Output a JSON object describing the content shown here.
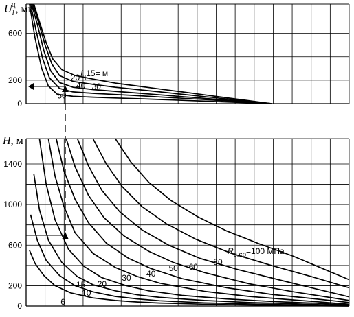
{
  "chart_data": [
    {
      "type": "line",
      "ylabel": {
        "main": "U",
        "sub": "l",
        "sup": "ц",
        "unit": ", мм"
      },
      "yticks": [
        "600",
        "200",
        "0"
      ],
      "ylim": [
        0,
        850
      ],
      "xlim": [
        0,
        14.5
      ],
      "grid": true,
      "series_label_prefix": {
        "main": "l",
        "sub": "ц",
        "rest": "=15 м"
      },
      "series": [
        {
          "name": "15",
          "points": [
            [
              0.35,
              850
            ],
            [
              0.6,
              700
            ],
            [
              0.9,
              520
            ],
            [
              1.2,
              380
            ],
            [
              1.6,
              290
            ],
            [
              2.2,
              240
            ],
            [
              3,
              210
            ],
            [
              4,
              175
            ],
            [
              5,
              150
            ],
            [
              6,
              125
            ],
            [
              7,
              100
            ],
            [
              8,
              75
            ],
            [
              9,
              50
            ],
            [
              10,
              25
            ],
            [
              11,
              0
            ]
          ]
        },
        {
          "name": "20",
          "points": [
            [
              0.3,
              850
            ],
            [
              0.55,
              700
            ],
            [
              0.85,
              500
            ],
            [
              1.15,
              340
            ],
            [
              1.5,
              240
            ],
            [
              2.1,
              190
            ],
            [
              3,
              165
            ],
            [
              4,
              140
            ],
            [
              5,
              120
            ],
            [
              6,
              100
            ],
            [
              7,
              80
            ],
            [
              8,
              60
            ],
            [
              9,
              40
            ],
            [
              10,
              20
            ],
            [
              11,
              0
            ]
          ]
        },
        {
          "name": "30",
          "points": [
            [
              0.25,
              850
            ],
            [
              0.5,
              680
            ],
            [
              0.8,
              450
            ],
            [
              1.1,
              280
            ],
            [
              1.5,
              180
            ],
            [
              2.1,
              140
            ],
            [
              3,
              120
            ],
            [
              4,
              105
            ],
            [
              5,
              90
            ],
            [
              6,
              75
            ],
            [
              7,
              60
            ],
            [
              8,
              45
            ],
            [
              9,
              30
            ],
            [
              10,
              15
            ],
            [
              11,
              0
            ]
          ]
        },
        {
          "name": "40",
          "points": [
            [
              0.2,
              850
            ],
            [
              0.45,
              620
            ],
            [
              0.75,
              380
            ],
            [
              1.05,
              220
            ],
            [
              1.5,
              130
            ],
            [
              2.1,
              100
            ],
            [
              3,
              88
            ],
            [
              4,
              78
            ],
            [
              5,
              68
            ],
            [
              6,
              57
            ],
            [
              7,
              46
            ],
            [
              8,
              35
            ],
            [
              9,
              23
            ],
            [
              10,
              11
            ],
            [
              11,
              0
            ]
          ]
        },
        {
          "name": "50",
          "points": [
            [
              0.15,
              850
            ],
            [
              0.4,
              560
            ],
            [
              0.7,
              300
            ],
            [
              1,
              150
            ],
            [
              1.4,
              80
            ],
            [
              2.1,
              62
            ],
            [
              3,
              55
            ],
            [
              4,
              48
            ],
            [
              5,
              42
            ],
            [
              6,
              35
            ],
            [
              7,
              28
            ],
            [
              8,
              21
            ],
            [
              9,
              14
            ],
            [
              10,
              7
            ],
            [
              11,
              0
            ]
          ]
        }
      ]
    },
    {
      "type": "line",
      "ylabel": {
        "main": "H",
        "unit": ", м"
      },
      "yticks": [
        "1400",
        "1000",
        "600",
        "200",
        "0"
      ],
      "ylim": [
        0,
        1650
      ],
      "xlim": [
        0,
        14.5
      ],
      "grid": true,
      "series_label_prefix": {
        "main": "R",
        "sub": "с.ср",
        "rest": "=100 МПа"
      },
      "series": [
        {
          "name": "6",
          "points": [
            [
              0.15,
              550
            ],
            [
              0.4,
              420
            ],
            [
              0.8,
              300
            ],
            [
              1.3,
              200
            ],
            [
              2,
              130
            ],
            [
              3,
              80
            ],
            [
              4,
              55
            ],
            [
              5,
              40
            ],
            [
              6,
              30
            ],
            [
              8,
              18
            ],
            [
              10,
              10
            ],
            [
              12,
              5
            ],
            [
              14.5,
              0
            ]
          ]
        },
        {
          "name": "10",
          "points": [
            [
              0.2,
              900
            ],
            [
              0.5,
              650
            ],
            [
              0.9,
              450
            ],
            [
              1.5,
              300
            ],
            [
              2.2,
              200
            ],
            [
              3,
              140
            ],
            [
              4,
              95
            ],
            [
              5,
              70
            ],
            [
              6,
              52
            ],
            [
              8,
              32
            ],
            [
              10,
              20
            ],
            [
              12,
              12
            ],
            [
              14.5,
              2
            ]
          ]
        },
        {
          "name": "15",
          "points": [
            [
              0.35,
              1300
            ],
            [
              0.6,
              950
            ],
            [
              1,
              650
            ],
            [
              1.6,
              430
            ],
            [
              2.3,
              290
            ],
            [
              3,
              210
            ],
            [
              4,
              150
            ],
            [
              5,
              110
            ],
            [
              6,
              85
            ],
            [
              8,
              55
            ],
            [
              10,
              35
            ],
            [
              12,
              22
            ],
            [
              14.5,
              5
            ]
          ]
        },
        {
          "name": "20",
          "points": [
            [
              0.6,
              1650
            ],
            [
              0.9,
              1200
            ],
            [
              1.3,
              850
            ],
            [
              1.9,
              560
            ],
            [
              2.6,
              390
            ],
            [
              3.4,
              280
            ],
            [
              4.5,
              200
            ],
            [
              5.5,
              150
            ],
            [
              7,
              105
            ],
            [
              9,
              70
            ],
            [
              11,
              45
            ],
            [
              13,
              28
            ],
            [
              14.5,
              10
            ]
          ]
        },
        {
          "name": "30",
          "points": [
            [
              1,
              1650
            ],
            [
              1.3,
              1280
            ],
            [
              1.7,
              980
            ],
            [
              2.2,
              720
            ],
            [
              3,
              520
            ],
            [
              4,
              380
            ],
            [
              5,
              290
            ],
            [
              6,
              225
            ],
            [
              8,
              145
            ],
            [
              10,
              95
            ],
            [
              12,
              60
            ],
            [
              14.5,
              18
            ]
          ]
        },
        {
          "name": "40",
          "points": [
            [
              1.35,
              1650
            ],
            [
              1.7,
              1330
            ],
            [
              2.2,
              1050
            ],
            [
              2.8,
              820
            ],
            [
              3.6,
              620
            ],
            [
              4.6,
              470
            ],
            [
              5.6,
              370
            ],
            [
              7,
              270
            ],
            [
              9,
              180
            ],
            [
              11,
              115
            ],
            [
              13,
              70
            ],
            [
              14.5,
              35
            ]
          ]
        },
        {
          "name": "50",
          "points": [
            [
              1.8,
              1650
            ],
            [
              2.2,
              1370
            ],
            [
              2.8,
              1090
            ],
            [
              3.5,
              870
            ],
            [
              4.4,
              690
            ],
            [
              5.5,
              540
            ],
            [
              6.6,
              430
            ],
            [
              8,
              330
            ],
            [
              10,
              220
            ],
            [
              12,
              140
            ],
            [
              14.5,
              55
            ]
          ]
        },
        {
          "name": "60",
          "points": [
            [
              2.3,
              1650
            ],
            [
              2.8,
              1380
            ],
            [
              3.4,
              1140
            ],
            [
              4.2,
              930
            ],
            [
              5.2,
              750
            ],
            [
              6.4,
              600
            ],
            [
              7.8,
              470
            ],
            [
              9.5,
              360
            ],
            [
              11.5,
              250
            ],
            [
              13,
              170
            ],
            [
              14.5,
              90
            ]
          ]
        },
        {
          "name": "80",
          "points": [
            [
              3,
              1650
            ],
            [
              3.6,
              1400
            ],
            [
              4.3,
              1180
            ],
            [
              5.2,
              980
            ],
            [
              6.3,
              810
            ],
            [
              7.6,
              660
            ],
            [
              9.2,
              520
            ],
            [
              11,
              400
            ],
            [
              12.8,
              290
            ],
            [
              14.5,
              180
            ]
          ]
        },
        {
          "name": "100",
          "points": [
            [
              4,
              1650
            ],
            [
              4.7,
              1420
            ],
            [
              5.5,
              1220
            ],
            [
              6.5,
              1040
            ],
            [
              7.7,
              880
            ],
            [
              9,
              740
            ],
            [
              10.5,
              610
            ],
            [
              12,
              490
            ],
            [
              13.3,
              370
            ],
            [
              14.5,
              260
            ]
          ]
        }
      ]
    }
  ]
}
